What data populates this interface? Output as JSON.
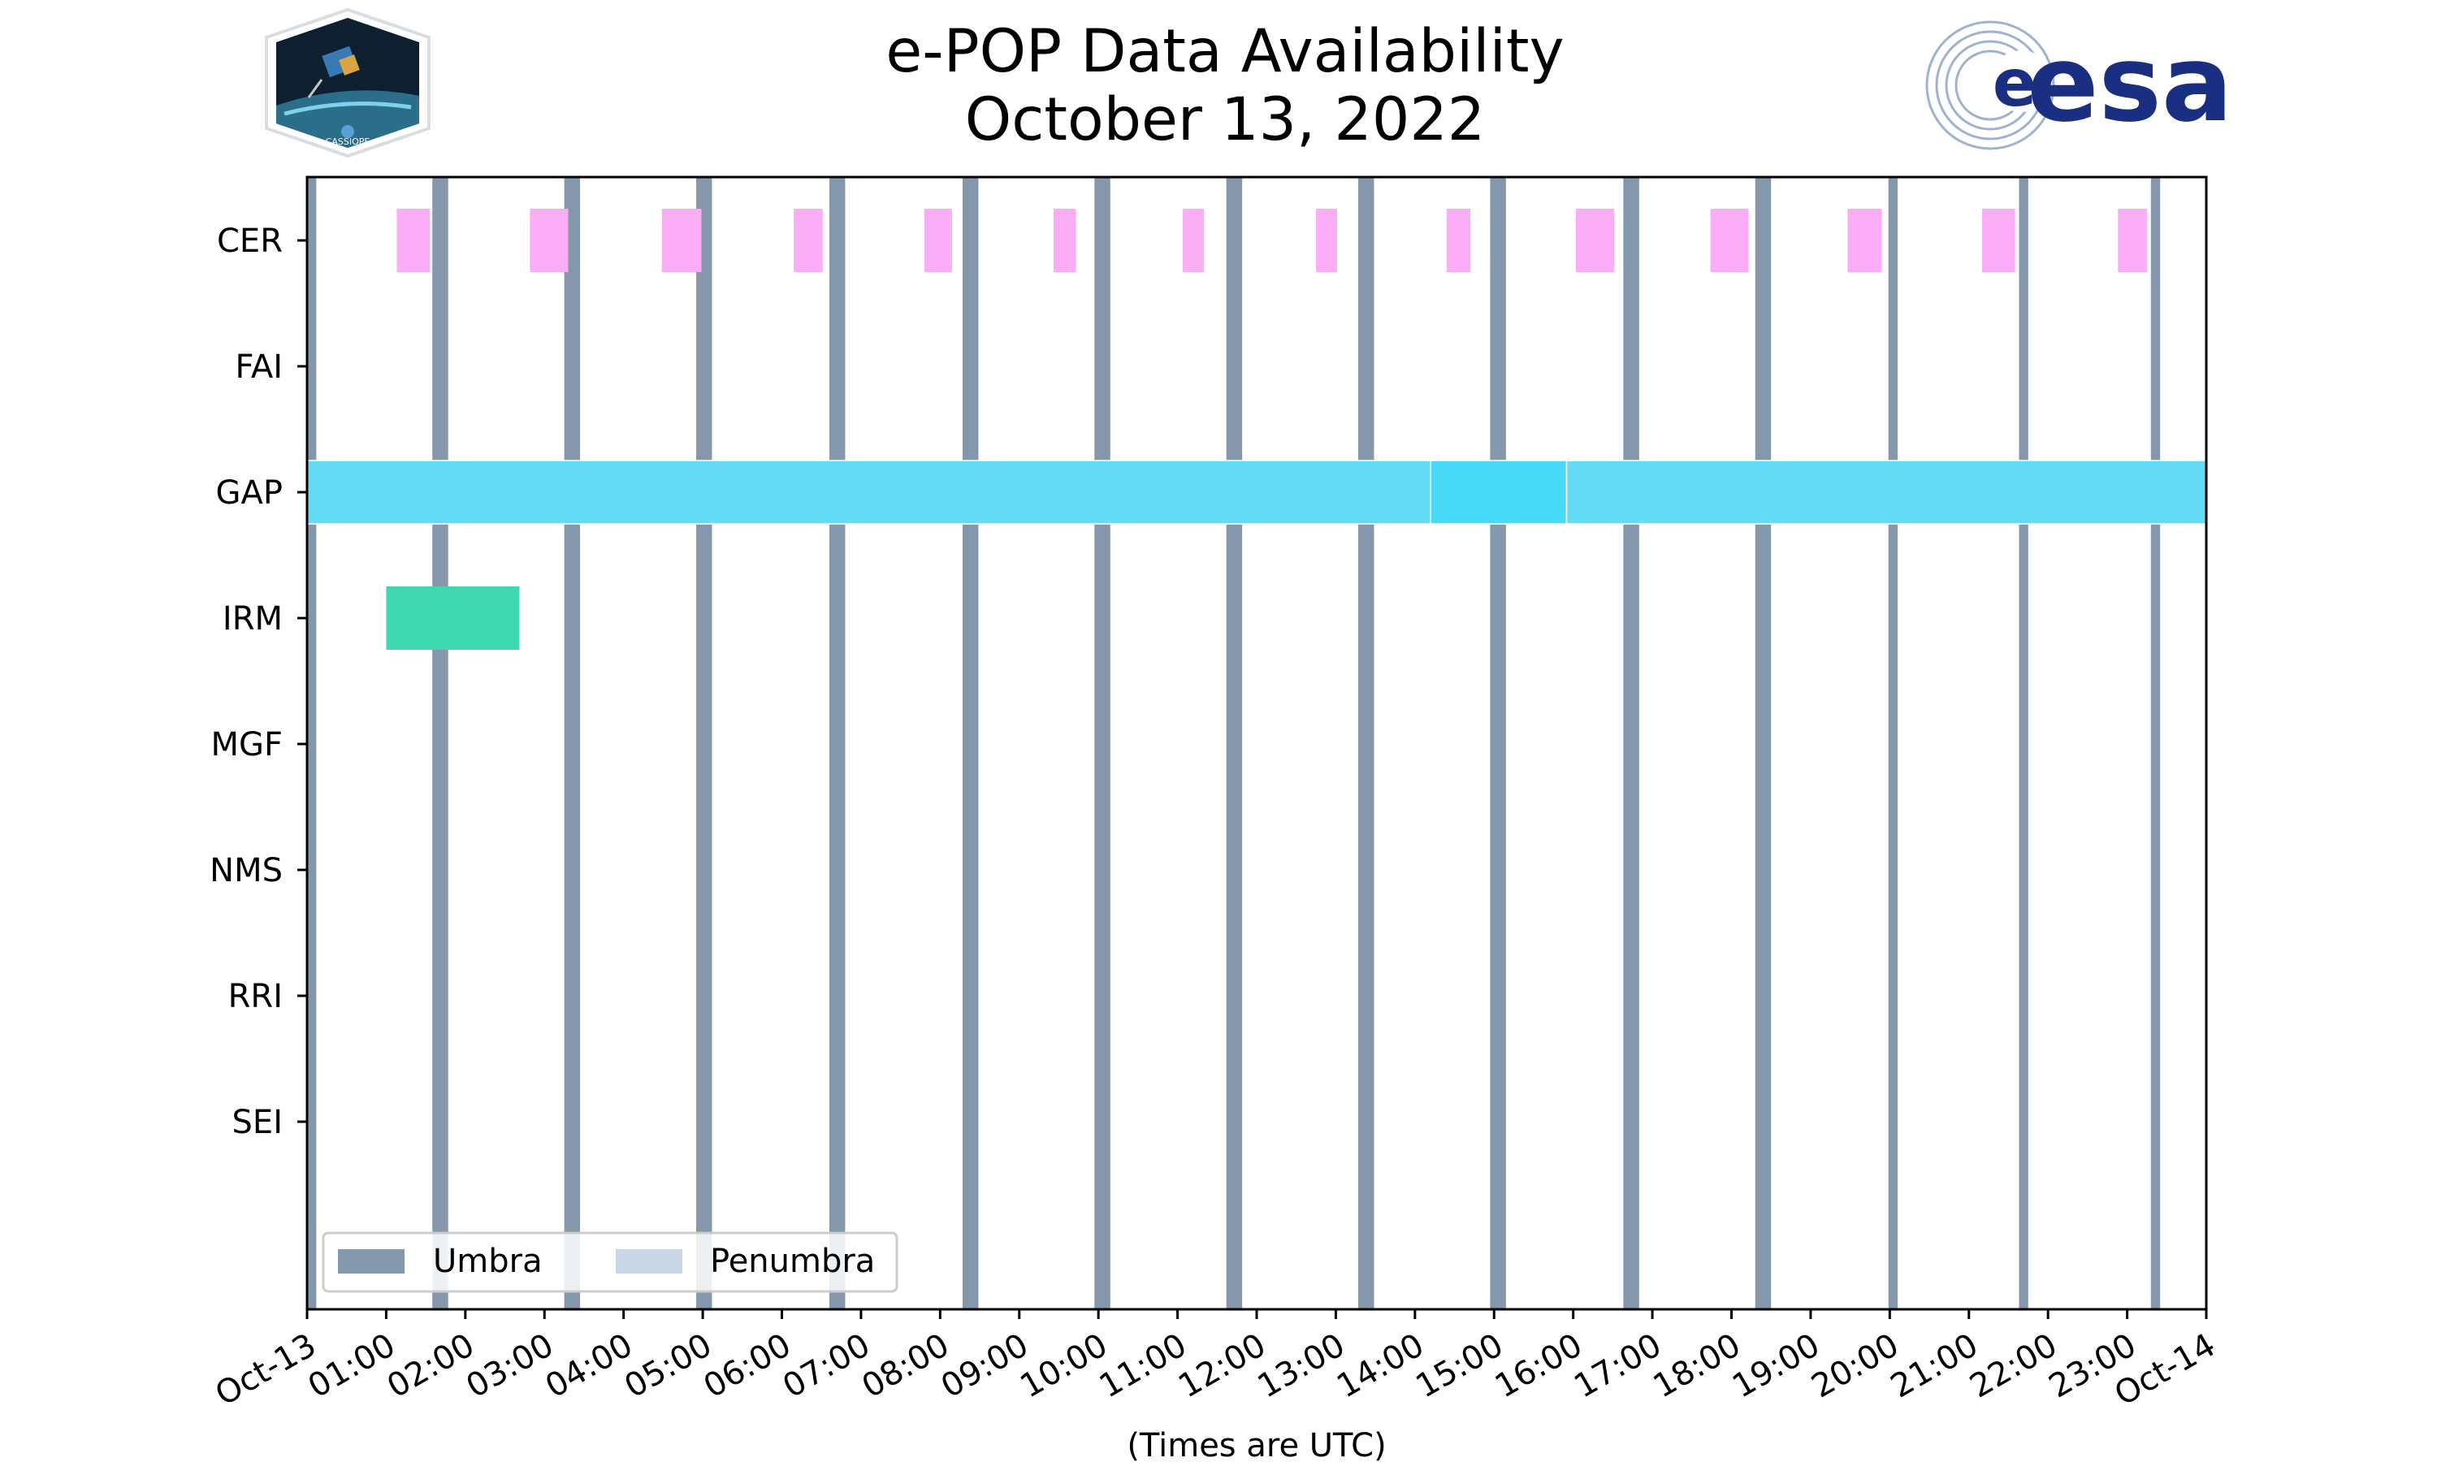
{
  "chart_data": {
    "type": "timeline",
    "title": [
      "e-POP Data Availability",
      "October 13, 2022"
    ],
    "xlabel": "(Times are UTC)",
    "xlim_hours": [
      0,
      24
    ],
    "x_tick_labels": [
      "Oct-13",
      "01:00",
      "02:00",
      "03:00",
      "04:00",
      "05:00",
      "06:00",
      "07:00",
      "08:00",
      "09:00",
      "10:00",
      "11:00",
      "12:00",
      "13:00",
      "14:00",
      "15:00",
      "16:00",
      "17:00",
      "18:00",
      "19:00",
      "20:00",
      "21:00",
      "22:00",
      "23:00",
      "Oct-14"
    ],
    "instruments": [
      "CER",
      "FAI",
      "GAP",
      "IRM",
      "MGF",
      "NMS",
      "RRI",
      "SEI"
    ],
    "colors": {
      "umbra": "#8597ab",
      "penumbra": "#c8d6e6",
      "CER": "#fbadf5",
      "GAP": "#64dcf6",
      "GAP_highlight": "#48d8f8",
      "IRM": "#40d8b0"
    },
    "legend": {
      "location": "lower-left",
      "items": [
        {
          "label": "Umbra",
          "color": "#8597ab"
        },
        {
          "label": "Penumbra",
          "color": "#c8d6e6"
        }
      ]
    },
    "umbra_intervals_utc": [
      [
        "00:00",
        "00:07"
      ],
      [
        "01:35",
        "01:47"
      ],
      [
        "03:15",
        "03:27"
      ],
      [
        "04:55",
        "05:07"
      ],
      [
        "06:36",
        "06:48"
      ],
      [
        "08:17",
        "08:29"
      ],
      [
        "09:57",
        "10:09"
      ],
      [
        "11:37",
        "11:49"
      ],
      [
        "13:17",
        "13:29"
      ],
      [
        "14:57",
        "15:09"
      ],
      [
        "16:38",
        "16:50"
      ],
      [
        "18:18",
        "18:30"
      ],
      [
        "19:59",
        "20:06"
      ],
      [
        "21:38",
        "21:45"
      ],
      [
        "23:18",
        "23:25"
      ]
    ],
    "availability": [
      {
        "instrument": "CER",
        "intervals_utc": [
          [
            "01:08",
            "01:33"
          ],
          [
            "02:49",
            "03:18"
          ],
          [
            "04:29",
            "04:59"
          ],
          [
            "06:09",
            "06:31"
          ],
          [
            "07:48",
            "08:09"
          ],
          [
            "09:26",
            "09:43"
          ],
          [
            "11:04",
            "11:20"
          ],
          [
            "12:45",
            "13:01"
          ],
          [
            "14:24",
            "14:42"
          ],
          [
            "16:02",
            "16:31"
          ],
          [
            "17:44",
            "18:13"
          ],
          [
            "19:28",
            "19:54"
          ],
          [
            "21:10",
            "21:35"
          ],
          [
            "22:53",
            "23:15"
          ]
        ]
      },
      {
        "instrument": "GAP",
        "intervals_utc": [
          [
            "00:00",
            "14:12"
          ],
          [
            "14:12",
            "15:55"
          ],
          [
            "15:55",
            "24:00"
          ]
        ]
      },
      {
        "instrument": "IRM",
        "intervals_utc": [
          [
            "01:00",
            "02:41"
          ]
        ]
      }
    ]
  }
}
